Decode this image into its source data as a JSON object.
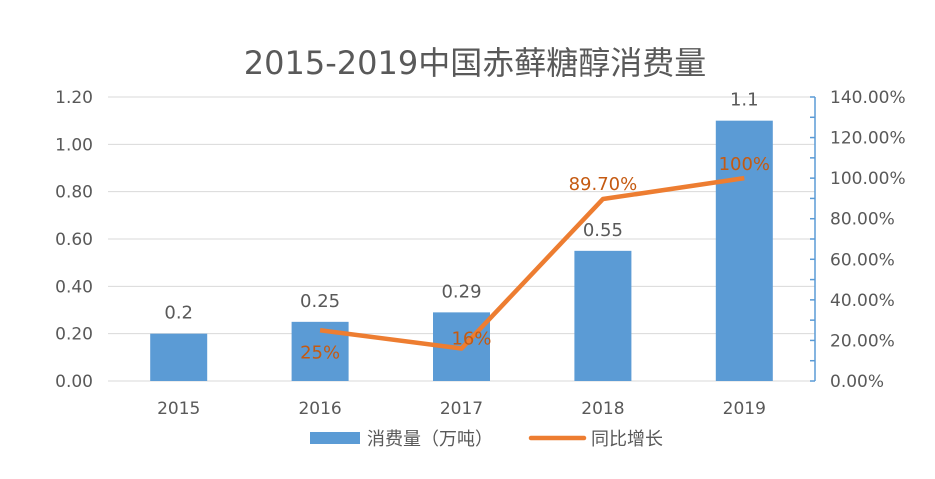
{
  "chart_data": {
    "type": "bar+line",
    "title": "2015-2019中国赤藓糖醇消费量",
    "categories": [
      "2015",
      "2016",
      "2017",
      "2018",
      "2019"
    ],
    "series": [
      {
        "name": "消费量（万吨）",
        "type": "bar",
        "axis": "left",
        "values": [
          0.2,
          0.25,
          0.29,
          0.55,
          1.1
        ],
        "labels": [
          "0.2",
          "0.25",
          "0.29",
          "0.55",
          "1.1"
        ],
        "color": "#5b9bd5"
      },
      {
        "name": "同比增长",
        "type": "line",
        "axis": "right",
        "values": [
          null,
          25,
          16,
          89.7,
          100
        ],
        "labels": [
          null,
          "25%",
          "16%",
          "89.70%",
          "100%"
        ],
        "color": "#ed7d31"
      }
    ],
    "left_axis": {
      "ylim": [
        0,
        1.2
      ],
      "ticks": [
        "0.00",
        "0.20",
        "0.40",
        "0.60",
        "0.80",
        "1.00",
        "1.20"
      ]
    },
    "right_axis": {
      "ylim": [
        0,
        140
      ],
      "ticks": [
        "0.00%",
        "20.00%",
        "40.00%",
        "60.00%",
        "80.00%",
        "100.00%",
        "120.00%",
        "140.00%"
      ],
      "color": "#5b9bd5"
    },
    "grid": true,
    "legend": "bottom",
    "label_color_line": "#c55a11"
  }
}
